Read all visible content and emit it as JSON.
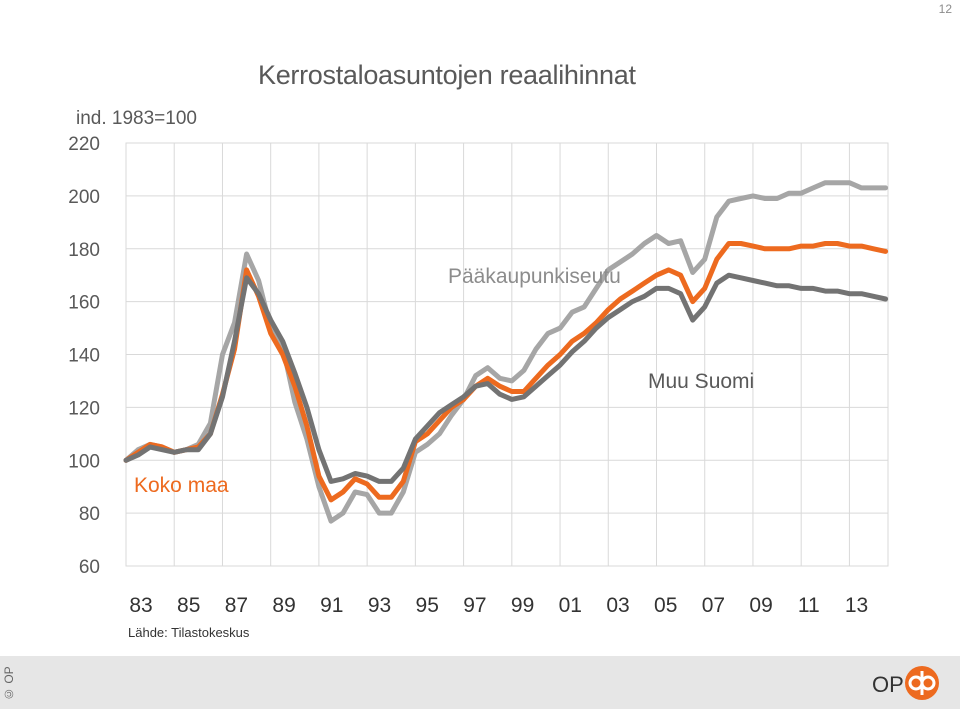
{
  "page": {
    "number": "12",
    "title": "Kerrostaloasuntojen reaalihinnat",
    "index_label": "ind. 1983=100",
    "source": "Lähde: Tilastokeskus"
  },
  "footer": {
    "copyright": "© OP",
    "logo_text": "OP"
  },
  "colors": {
    "koko_maa": "#ed6a1f",
    "paakaupunkiseutu": "#a6a6a6",
    "muu_suomi": "#737373",
    "grid": "#d9d9d9"
  },
  "chart_data": {
    "type": "line",
    "title": "Kerrostaloasuntojen reaalihinnat",
    "ylabel": "ind. 1983=100",
    "ylim": [
      60,
      220
    ],
    "xlim": [
      1983,
      2014.6
    ],
    "yticks": [
      "60",
      "80",
      "100",
      "120",
      "140",
      "160",
      "180",
      "200",
      "220"
    ],
    "xticks": [
      "83",
      "85",
      "87",
      "89",
      "91",
      "93",
      "95",
      "97",
      "99",
      "01",
      "03",
      "05",
      "07",
      "09",
      "11",
      "13"
    ],
    "grid": true,
    "legend": "inline-labels",
    "series": [
      {
        "name": "Pääkaupunkiseutu",
        "color": "#a6a6a6",
        "x": [
          1983,
          1983.5,
          1984,
          1984.5,
          1985,
          1985.5,
          1986,
          1986.5,
          1987,
          1987.5,
          1988,
          1988.5,
          1989,
          1989.5,
          1990,
          1990.5,
          1991,
          1991.5,
          1992,
          1992.5,
          1993,
          1993.5,
          1994,
          1994.5,
          1995,
          1995.5,
          1996,
          1996.5,
          1997,
          1997.5,
          1998,
          1998.5,
          1999,
          1999.5,
          2000,
          2000.5,
          2001,
          2001.5,
          2002,
          2002.5,
          2003,
          2003.5,
          2004,
          2004.5,
          2005,
          2005.5,
          2006,
          2006.5,
          2007,
          2007.5,
          2008,
          2008.5,
          2009,
          2009.5,
          2010,
          2010.5,
          2011,
          2011.5,
          2012,
          2012.5,
          2013,
          2013.5,
          2014,
          2014.5
        ],
        "values": [
          100,
          104,
          106,
          105,
          103,
          104,
          106,
          114,
          140,
          152,
          178,
          168,
          150,
          143,
          122,
          108,
          90,
          77,
          80,
          88,
          87,
          80,
          80,
          88,
          103,
          106,
          110,
          117,
          123,
          132,
          135,
          131,
          130,
          134,
          142,
          148,
          150,
          156,
          158,
          165,
          172,
          175,
          178,
          182,
          185,
          182,
          183,
          171,
          176,
          192,
          198,
          199,
          200,
          199,
          199,
          201,
          201,
          203,
          205,
          205,
          205,
          203,
          203,
          203
        ]
      },
      {
        "name": "Koko maa",
        "color": "#ed6a1f",
        "x": [
          1983,
          1983.5,
          1984,
          1984.5,
          1985,
          1985.5,
          1986,
          1986.5,
          1987,
          1987.5,
          1988,
          1988.5,
          1989,
          1989.5,
          1990,
          1990.5,
          1991,
          1991.5,
          1992,
          1992.5,
          1993,
          1993.5,
          1994,
          1994.5,
          1995,
          1995.5,
          1996,
          1996.5,
          1997,
          1997.5,
          1998,
          1998.5,
          1999,
          1999.5,
          2000,
          2000.5,
          2001,
          2001.5,
          2002,
          2002.5,
          2003,
          2003.5,
          2004,
          2004.5,
          2005,
          2005.5,
          2006,
          2006.5,
          2007,
          2007.5,
          2008,
          2008.5,
          2009,
          2009.5,
          2010,
          2010.5,
          2011,
          2011.5,
          2012,
          2012.5,
          2013,
          2013.5,
          2014,
          2014.5
        ],
        "values": [
          100,
          103,
          106,
          105,
          103,
          104,
          105,
          110,
          125,
          142,
          172,
          162,
          148,
          140,
          128,
          113,
          94,
          85,
          88,
          93,
          91,
          86,
          86,
          92,
          107,
          110,
          115,
          120,
          123,
          128,
          131,
          128,
          126,
          126,
          131,
          136,
          140,
          145,
          148,
          152,
          157,
          161,
          164,
          167,
          170,
          172,
          170,
          160,
          165,
          176,
          182,
          182,
          181,
          180,
          180,
          180,
          181,
          181,
          182,
          182,
          181,
          181,
          180,
          179
        ]
      },
      {
        "name": "Muu Suomi",
        "color": "#737373",
        "x": [
          1983,
          1983.5,
          1984,
          1984.5,
          1985,
          1985.5,
          1986,
          1986.5,
          1987,
          1987.5,
          1988,
          1988.5,
          1989,
          1989.5,
          1990,
          1990.5,
          1991,
          1991.5,
          1992,
          1992.5,
          1993,
          1993.5,
          1994,
          1994.5,
          1995,
          1995.5,
          1996,
          1996.5,
          1997,
          1997.5,
          1998,
          1998.5,
          1999,
          1999.5,
          2000,
          2000.5,
          2001,
          2001.5,
          2002,
          2002.5,
          2003,
          2003.5,
          2004,
          2004.5,
          2005,
          2005.5,
          2006,
          2006.5,
          2007,
          2007.5,
          2008,
          2008.5,
          2009,
          2009.5,
          2010,
          2010.5,
          2011,
          2011.5,
          2012,
          2012.5,
          2013,
          2013.5,
          2014,
          2014.5
        ],
        "values": [
          100,
          102,
          105,
          104,
          103,
          104,
          104,
          110,
          124,
          145,
          169,
          163,
          153,
          145,
          133,
          120,
          104,
          92,
          93,
          95,
          94,
          92,
          92,
          97,
          108,
          113,
          118,
          121,
          124,
          128,
          129,
          125,
          123,
          124,
          128,
          132,
          136,
          141,
          145,
          150,
          154,
          157,
          160,
          162,
          165,
          165,
          163,
          153,
          158,
          167,
          170,
          169,
          168,
          167,
          166,
          166,
          165,
          165,
          164,
          164,
          163,
          163,
          162,
          161
        ]
      }
    ],
    "annotations": [
      {
        "text": "Pääkaupunkiseutu",
        "series": "Pääkaupunkiseutu"
      },
      {
        "text": "Muu Suomi",
        "series": "Muu Suomi"
      },
      {
        "text": "Koko maa",
        "series": "Koko maa"
      }
    ]
  }
}
